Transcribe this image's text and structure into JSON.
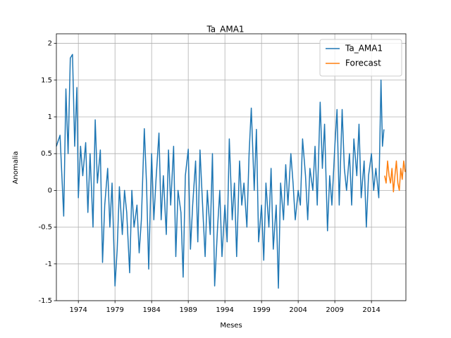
{
  "chart_data": {
    "type": "line",
    "title": "Ta_AMA1",
    "x_label": "Meses",
    "y_label": "Anomalia",
    "xlim": [
      1971.0,
      2018.7
    ],
    "ylim": [
      -1.5,
      2.13
    ],
    "xticks": [
      1974,
      1979,
      1984,
      1989,
      1994,
      1999,
      2004,
      2009,
      2014
    ],
    "yticks": [
      -1.5,
      -1.0,
      -0.5,
      0.0,
      0.5,
      1.0,
      1.5,
      2.0
    ],
    "grid": true,
    "legend": "upper right",
    "series": [
      {
        "name": "Ta_AMA1",
        "color": "#1f77b4",
        "x": [
          1971.0,
          1971.5,
          1972.0,
          1972.3,
          1972.6,
          1972.9,
          1973.2,
          1973.5,
          1973.8,
          1974.0,
          1974.3,
          1974.6,
          1975.0,
          1975.3,
          1975.6,
          1976.0,
          1976.3,
          1976.6,
          1977.0,
          1977.3,
          1977.6,
          1978.0,
          1978.3,
          1978.6,
          1979.0,
          1979.3,
          1979.6,
          1980.0,
          1980.3,
          1980.6,
          1981.0,
          1981.3,
          1981.6,
          1982.0,
          1982.3,
          1982.6,
          1983.0,
          1983.3,
          1983.6,
          1984.0,
          1984.3,
          1984.6,
          1985.0,
          1985.3,
          1985.6,
          1986.0,
          1986.3,
          1986.6,
          1987.0,
          1987.3,
          1987.6,
          1988.0,
          1988.3,
          1988.6,
          1989.0,
          1989.3,
          1989.6,
          1990.0,
          1990.3,
          1990.6,
          1991.0,
          1991.3,
          1991.6,
          1992.0,
          1992.3,
          1992.6,
          1993.0,
          1993.3,
          1993.6,
          1994.0,
          1994.3,
          1994.6,
          1995.0,
          1995.3,
          1995.6,
          1996.0,
          1996.3,
          1996.6,
          1997.0,
          1997.3,
          1997.6,
          1998.0,
          1998.3,
          1998.6,
          1999.0,
          1999.3,
          1999.6,
          2000.0,
          2000.3,
          2000.6,
          2001.0,
          2001.3,
          2001.6,
          2002.0,
          2002.3,
          2002.6,
          2003.0,
          2003.3,
          2003.6,
          2004.0,
          2004.3,
          2004.6,
          2005.0,
          2005.3,
          2005.6,
          2006.0,
          2006.3,
          2006.6,
          2007.0,
          2007.3,
          2007.6,
          2008.0,
          2008.3,
          2008.6,
          2009.0,
          2009.3,
          2009.6,
          2010.0,
          2010.3,
          2010.6,
          2011.0,
          2011.3,
          2011.6,
          2012.0,
          2012.3,
          2012.6,
          2013.0,
          2013.3,
          2013.6,
          2014.0,
          2014.3,
          2014.6,
          2015.0,
          2015.3,
          2015.5,
          2015.7
        ],
        "values": [
          0.6,
          0.75,
          -0.35,
          1.38,
          0.5,
          1.8,
          1.85,
          0.6,
          1.4,
          -0.1,
          0.6,
          0.2,
          0.65,
          -0.3,
          0.5,
          -0.5,
          0.96,
          0.1,
          0.55,
          -0.98,
          -0.2,
          0.3,
          -0.5,
          0.1,
          -1.3,
          -0.8,
          0.05,
          -0.6,
          0.0,
          -0.3,
          -1.12,
          0.0,
          -0.5,
          -0.2,
          -0.85,
          -0.4,
          0.84,
          0.1,
          -1.07,
          0.5,
          -0.4,
          0.15,
          0.78,
          -0.4,
          0.2,
          -0.6,
          0.55,
          -0.2,
          0.6,
          -0.9,
          0.0,
          -0.3,
          -1.18,
          0.2,
          0.56,
          -0.8,
          -0.2,
          0.4,
          -0.7,
          0.55,
          -0.3,
          -0.9,
          0.0,
          -0.6,
          0.5,
          -1.3,
          -0.5,
          0.0,
          -0.9,
          -0.2,
          -0.7,
          0.7,
          -0.4,
          0.1,
          -0.9,
          0.4,
          -0.2,
          0.1,
          -0.5,
          0.5,
          1.12,
          0.0,
          0.83,
          -0.7,
          -0.2,
          -0.95,
          0.1,
          -0.5,
          0.3,
          -0.8,
          -0.2,
          -1.33,
          0.1,
          -0.4,
          0.35,
          -0.2,
          0.5,
          0.1,
          -0.4,
          0.0,
          -0.2,
          0.7,
          0.2,
          -0.4,
          0.3,
          0.0,
          0.6,
          -0.2,
          1.2,
          0.3,
          0.9,
          -0.55,
          0.2,
          -0.2,
          0.6,
          1.1,
          -0.2,
          1.1,
          0.3,
          0.0,
          0.5,
          -0.2,
          0.7,
          0.2,
          0.9,
          -0.1,
          0.4,
          -0.5,
          0.2,
          0.5,
          0.0,
          0.3,
          -0.1,
          1.5,
          0.6,
          0.83
        ]
      },
      {
        "name": "Forecast",
        "color": "#ff7f0e",
        "x": [
          2015.8,
          2016.0,
          2016.2,
          2016.4,
          2016.6,
          2016.8,
          2017.0,
          2017.2,
          2017.4,
          2017.6,
          2017.8,
          2018.0,
          2018.2,
          2018.4,
          2018.6
        ],
        "values": [
          0.2,
          0.1,
          0.4,
          0.2,
          0.1,
          0.3,
          -0.02,
          0.2,
          0.4,
          0.1,
          0.0,
          0.3,
          0.15,
          0.4,
          0.25
        ]
      }
    ]
  }
}
